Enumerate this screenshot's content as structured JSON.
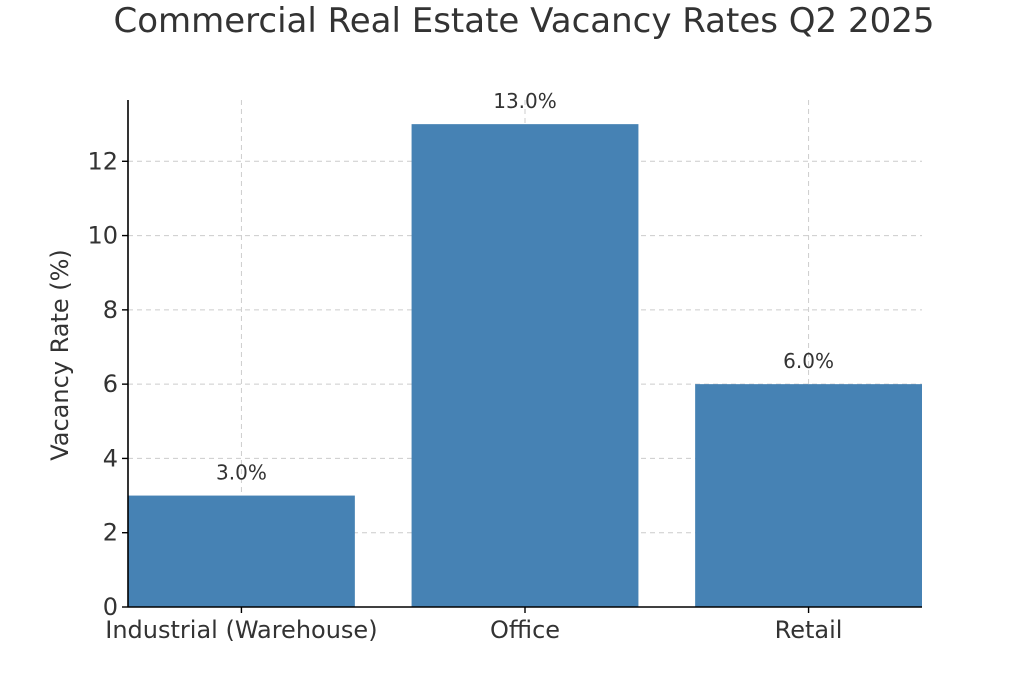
{
  "chart_data": {
    "type": "bar",
    "title": "Commercial Real Estate Vacancy Rates Q2 2025",
    "xlabel": "",
    "ylabel": "Vacancy Rate (%)",
    "categories": [
      "Industrial (Warehouse)",
      "Office",
      "Retail"
    ],
    "values": [
      3.0,
      13.0,
      6.0
    ],
    "data_labels": [
      "3.0%",
      "13.0%",
      "6.0%"
    ],
    "ylim": [
      0,
      13.65
    ],
    "yticks": [
      0,
      2,
      4,
      6,
      8,
      10,
      12
    ],
    "grid": true,
    "bar_color": "#4682b4"
  }
}
